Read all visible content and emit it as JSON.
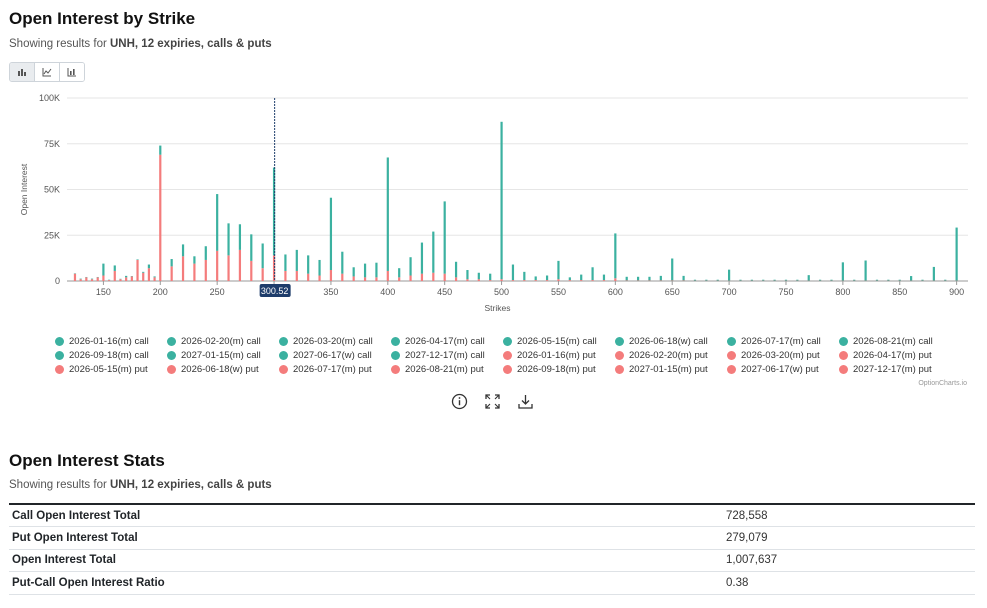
{
  "header": {
    "title": "Open Interest by Strike",
    "subtitle_prefix": "Showing results for ",
    "subtitle_bold": "UNH, 12 expiries, calls & puts"
  },
  "toolbar": {
    "buttons": [
      {
        "icon": "bar-chart-icon"
      },
      {
        "icon": "line-chart-icon"
      },
      {
        "icon": "stacked-chart-icon"
      }
    ]
  },
  "chart_data": {
    "type": "bar",
    "stacked": true,
    "xlabel": "Strikes",
    "ylabel": "Open Interest",
    "xlim": [
      118,
      910
    ],
    "ylim": [
      0,
      100000
    ],
    "x_ticks": [
      150,
      200,
      250,
      300,
      350,
      400,
      450,
      500,
      550,
      600,
      650,
      700,
      750,
      800,
      850,
      900
    ],
    "y_ticks": [
      {
        "value": 0,
        "label": "0"
      },
      {
        "value": 25000,
        "label": "25K"
      },
      {
        "value": 50000,
        "label": "50K"
      },
      {
        "value": 75000,
        "label": "75K"
      },
      {
        "value": 100000,
        "label": "100K"
      }
    ],
    "crosshair": {
      "x": 300.52,
      "label": "300.52"
    },
    "grid": true,
    "legend_position": "bottom",
    "call_color": "#3bb1a0",
    "put_color": "#f47c7c",
    "x": [
      125,
      130,
      135,
      140,
      145,
      150,
      155,
      160,
      165,
      170,
      175,
      180,
      185,
      190,
      195,
      200,
      210,
      220,
      230,
      240,
      250,
      260,
      270,
      280,
      290,
      300,
      310,
      320,
      330,
      340,
      350,
      360,
      370,
      380,
      390,
      400,
      410,
      420,
      430,
      440,
      450,
      460,
      470,
      480,
      490,
      500,
      510,
      520,
      530,
      540,
      550,
      560,
      570,
      580,
      590,
      600,
      610,
      620,
      630,
      640,
      650,
      660,
      670,
      680,
      690,
      700,
      710,
      720,
      730,
      740,
      750,
      760,
      770,
      780,
      790,
      800,
      810,
      820,
      830,
      840,
      850,
      860,
      870,
      880,
      890,
      900
    ],
    "series": [
      {
        "name": "call",
        "values": [
          200,
          300,
          200,
          300,
          200,
          6500,
          200,
          3000,
          200,
          800,
          200,
          300,
          500,
          2000,
          500,
          5000,
          4000,
          6500,
          4000,
          7500,
          31000,
          17500,
          14000,
          14500,
          13500,
          48000,
          9000,
          11500,
          10000,
          8500,
          39500,
          12000,
          5000,
          7500,
          8000,
          62000,
          5000,
          10000,
          17000,
          22500,
          39500,
          8500,
          5000,
          3500,
          3500,
          86000,
          8500,
          4500,
          2000,
          2500,
          10000,
          1500,
          3000,
          7000,
          3000,
          24500,
          2000,
          2000,
          2000,
          2500,
          12000,
          2500,
          500,
          500,
          500,
          6000,
          500,
          500,
          500,
          500,
          500,
          500,
          3000,
          500,
          500,
          10000,
          500,
          11000,
          500,
          500,
          500,
          2500,
          500,
          7500,
          500,
          29000
        ]
      },
      {
        "name": "put",
        "values": [
          4000,
          1000,
          2000,
          1000,
          2000,
          3000,
          500,
          5500,
          1000,
          2000,
          2500,
          11500,
          4500,
          7000,
          2000,
          69000,
          8000,
          13500,
          9500,
          11500,
          16500,
          14000,
          17000,
          11000,
          7000,
          14000,
          5500,
          5500,
          4000,
          3000,
          6000,
          4000,
          2500,
          2000,
          2000,
          5500,
          2000,
          3000,
          4000,
          4500,
          4000,
          2000,
          1000,
          1000,
          500,
          1000,
          500,
          500,
          500,
          500,
          1000,
          500,
          500,
          500,
          500,
          1500,
          300,
          300,
          300,
          300,
          300,
          300,
          200,
          200,
          200,
          200,
          200,
          200,
          200,
          200,
          200,
          200,
          200,
          200,
          200,
          200,
          200,
          200,
          200,
          200,
          200,
          200,
          200,
          200,
          200,
          200
        ]
      }
    ]
  },
  "legend": {
    "items": [
      {
        "label": "2026-01-16(m) call",
        "color": "#3bb1a0"
      },
      {
        "label": "2026-02-20(m) call",
        "color": "#3bb1a0"
      },
      {
        "label": "2026-03-20(m) call",
        "color": "#3bb1a0"
      },
      {
        "label": "2026-04-17(m) call",
        "color": "#3bb1a0"
      },
      {
        "label": "2026-05-15(m) call",
        "color": "#3bb1a0"
      },
      {
        "label": "2026-06-18(w) call",
        "color": "#3bb1a0"
      },
      {
        "label": "2026-07-17(m) call",
        "color": "#3bb1a0"
      },
      {
        "label": "2026-08-21(m) call",
        "color": "#3bb1a0"
      },
      {
        "label": "2026-09-18(m) call",
        "color": "#3bb1a0"
      },
      {
        "label": "2027-01-15(m) call",
        "color": "#3bb1a0"
      },
      {
        "label": "2027-06-17(w) call",
        "color": "#3bb1a0"
      },
      {
        "label": "2027-12-17(m) call",
        "color": "#3bb1a0"
      },
      {
        "label": "2026-01-16(m) put",
        "color": "#f47c7c"
      },
      {
        "label": "2026-02-20(m) put",
        "color": "#f47c7c"
      },
      {
        "label": "2026-03-20(m) put",
        "color": "#f47c7c"
      },
      {
        "label": "2026-04-17(m) put",
        "color": "#f47c7c"
      },
      {
        "label": "2026-05-15(m) put",
        "color": "#f47c7c"
      },
      {
        "label": "2026-06-18(w) put",
        "color": "#f47c7c"
      },
      {
        "label": "2026-07-17(m) put",
        "color": "#f47c7c"
      },
      {
        "label": "2026-08-21(m) put",
        "color": "#f47c7c"
      },
      {
        "label": "2026-09-18(m) put",
        "color": "#f47c7c"
      },
      {
        "label": "2027-01-15(m) put",
        "color": "#f47c7c"
      },
      {
        "label": "2027-06-17(w) put",
        "color": "#f47c7c"
      },
      {
        "label": "2027-12-17(m) put",
        "color": "#f47c7c"
      }
    ]
  },
  "credit": "OptionCharts.io",
  "tools": [
    {
      "icon": "info-icon"
    },
    {
      "icon": "fullscreen-icon"
    },
    {
      "icon": "download-icon"
    }
  ],
  "stats": {
    "title": "Open Interest Stats",
    "subtitle_prefix": "Showing results for ",
    "subtitle_bold": "UNH, 12 expiries, calls & puts",
    "rows": [
      {
        "label": "Call Open Interest Total",
        "value": "728,558"
      },
      {
        "label": "Put Open Interest Total",
        "value": "279,079"
      },
      {
        "label": "Open Interest Total",
        "value": "1,007,637"
      },
      {
        "label": "Put-Call Open Interest Ratio",
        "value": "0.38"
      }
    ]
  }
}
